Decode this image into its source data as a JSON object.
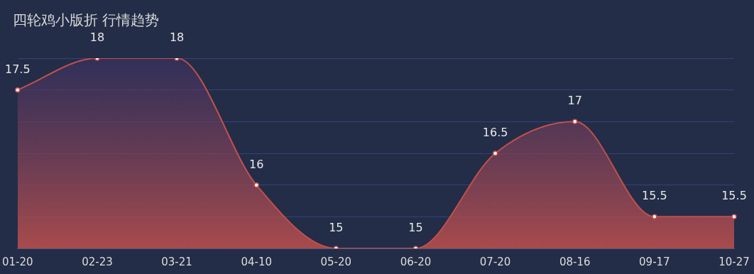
{
  "chart_data": {
    "type": "area",
    "title": "四轮鸡小版折 行情趋势",
    "categories": [
      "01-20",
      "02-23",
      "03-21",
      "04-10",
      "05-20",
      "06-20",
      "07-20",
      "08-16",
      "09-17",
      "10-27"
    ],
    "series": [
      {
        "color": "#c0504d",
        "values": [
          17.5,
          18,
          18,
          16,
          15,
          15,
          16.5,
          17,
          15.5,
          15.5
        ]
      }
    ],
    "ylim": [
      15,
      18
    ],
    "yticks": [
      {
        "value": 15,
        "label": null
      },
      {
        "value": 15.5,
        "label": null
      },
      {
        "value": 16,
        "label": null
      },
      {
        "value": 16.5,
        "label": null
      },
      {
        "value": 17,
        "label": null
      },
      {
        "value": 17.5,
        "label": null
      },
      {
        "value": 18,
        "label": null
      }
    ],
    "tick_labels": "x",
    "grid": "y",
    "legend": false,
    "marker": "circle",
    "data_labels": true
  }
}
